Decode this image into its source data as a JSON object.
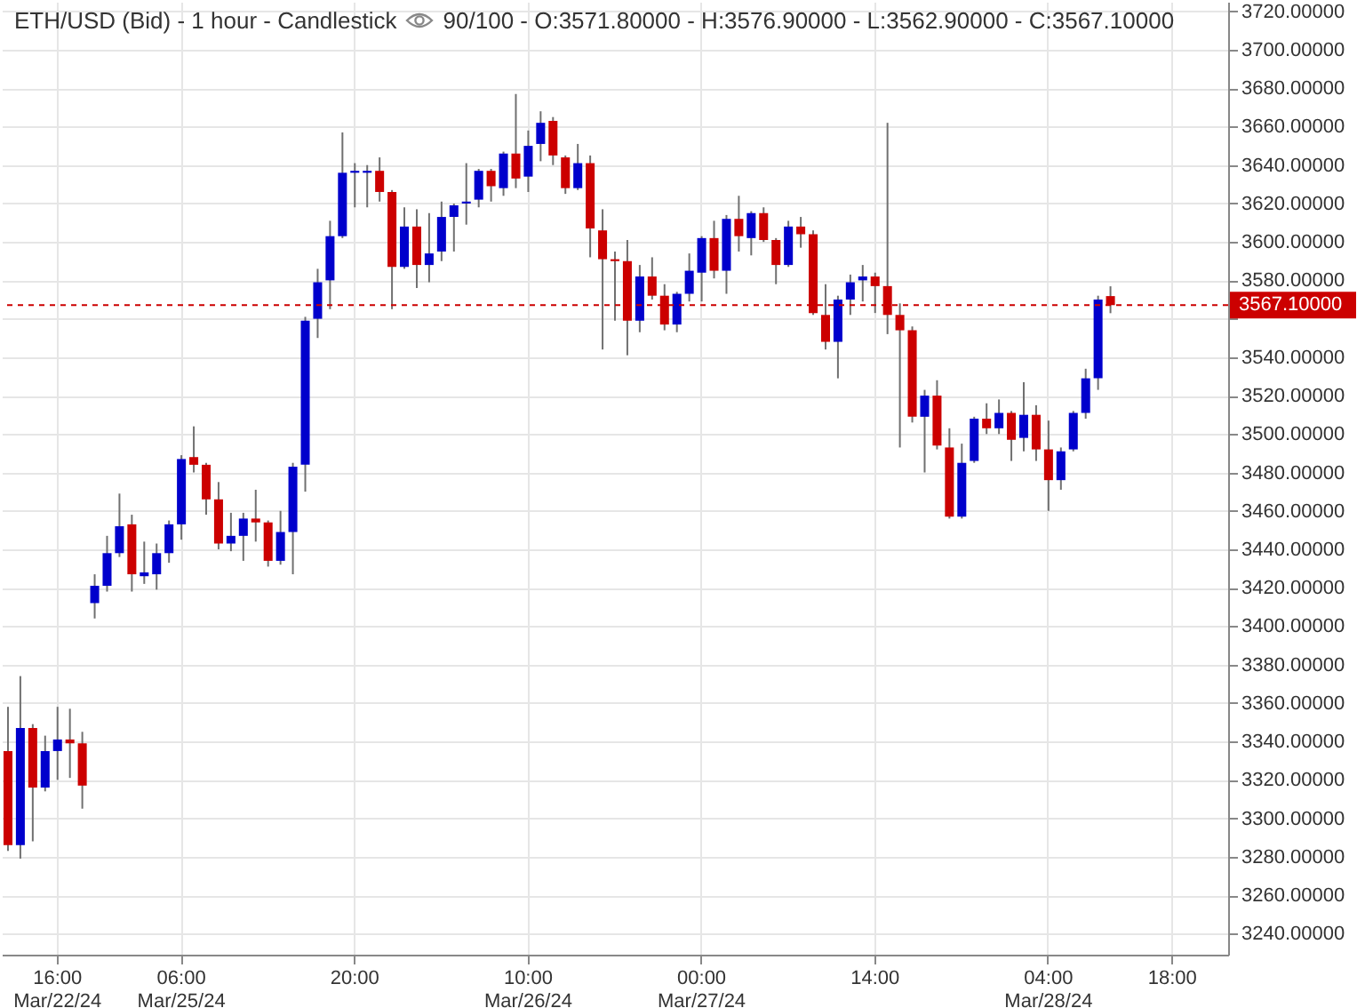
{
  "chart_data": {
    "type": "candlestick",
    "title": "ETH/USD (Bid) - 1 hour - Candlestick",
    "subtitle": "90/100 - O:3571.80000 - H:3576.90000 - L:3562.90000 - C:3567.10000",
    "categories": [
      null,
      null,
      null,
      null,
      "16:00\nMar/22/24",
      null,
      null,
      null,
      null,
      null,
      null,
      null,
      null,
      null,
      "06:00\nMar/25/24",
      null,
      null,
      null,
      null,
      null,
      null,
      null,
      null,
      null,
      null,
      null,
      null,
      null,
      "20:00",
      null,
      null,
      null,
      null,
      null,
      null,
      null,
      null,
      null,
      null,
      null,
      null,
      null,
      "10:00\nMar/26/24",
      null,
      null,
      null,
      null,
      null,
      null,
      null,
      null,
      null,
      null,
      null,
      null,
      null,
      "00:00\nMar/27/24",
      null,
      null,
      null,
      null,
      null,
      null,
      null,
      null,
      null,
      null,
      null,
      null,
      null,
      "14:00",
      null,
      null,
      null,
      null,
      null,
      null,
      null,
      null,
      null,
      null,
      null,
      null,
      null,
      "04:00\nMar/28/24",
      null,
      null,
      null,
      null,
      null,
      null,
      null,
      null,
      null,
      "18:00",
      null,
      null,
      null,
      null
    ],
    "ohlc": [
      [
        3335,
        3358,
        3283,
        3286
      ],
      [
        3286,
        3374,
        3279,
        3347
      ],
      [
        3347,
        3349,
        3288,
        3316
      ],
      [
        3316,
        3343,
        3314,
        3335
      ],
      [
        3335,
        3358,
        3320,
        3341
      ],
      [
        3341,
        3357,
        3321,
        3339
      ],
      [
        3339,
        3345,
        3305,
        3317
      ],
      [
        3412,
        3427,
        3404,
        3421
      ],
      [
        3421,
        3447,
        3418,
        3438
      ],
      [
        3438,
        3469,
        3436,
        3452
      ],
      [
        3453,
        3458,
        3418,
        3427
      ],
      [
        3426,
        3444,
        3422,
        3428
      ],
      [
        3427,
        3443,
        3419,
        3438
      ],
      [
        3438,
        3455,
        3433,
        3453
      ],
      [
        3453,
        3489,
        3445,
        3487
      ],
      [
        3488,
        3504,
        3480,
        3484
      ],
      [
        3484,
        3485,
        3458,
        3466
      ],
      [
        3466,
        3475,
        3440,
        3443
      ],
      [
        3443,
        3459,
        3439,
        3447
      ],
      [
        3447,
        3459,
        3434,
        3456
      ],
      [
        3456,
        3471,
        3444,
        3454
      ],
      [
        3454,
        3455,
        3431,
        3434
      ],
      [
        3434,
        3460,
        3432,
        3449
      ],
      [
        3449,
        3485,
        3427,
        3483
      ],
      [
        3484,
        3561,
        3470,
        3559
      ],
      [
        3560,
        3586,
        3550,
        3579
      ],
      [
        3580,
        3611,
        3565,
        3603
      ],
      [
        3603,
        3657,
        3602,
        3636
      ],
      [
        3636,
        3641,
        3618,
        3637
      ],
      [
        3636,
        3640,
        3618,
        3637
      ],
      [
        3637,
        3644,
        3621,
        3626
      ],
      [
        3626,
        3627,
        3565,
        3587
      ],
      [
        3587,
        3618,
        3586,
        3608
      ],
      [
        3608,
        3617,
        3576,
        3588
      ],
      [
        3588,
        3615,
        3579,
        3594
      ],
      [
        3595,
        3621,
        3590,
        3613
      ],
      [
        3613,
        3620,
        3595,
        3619
      ],
      [
        3620,
        3641,
        3609,
        3621
      ],
      [
        3622,
        3638,
        3618,
        3637
      ],
      [
        3637,
        3638,
        3621,
        3629
      ],
      [
        3628,
        3647,
        3624,
        3646
      ],
      [
        3646,
        3677,
        3628,
        3633
      ],
      [
        3634,
        3658,
        3626,
        3650
      ],
      [
        3651,
        3668,
        3642,
        3662
      ],
      [
        3663,
        3665,
        3640,
        3645
      ],
      [
        3644,
        3645,
        3625,
        3628
      ],
      [
        3628,
        3651,
        3627,
        3641
      ],
      [
        3641,
        3645,
        3592,
        3607
      ],
      [
        3606,
        3617,
        3544,
        3591
      ],
      [
        3591,
        3595,
        3559,
        3590
      ],
      [
        3590,
        3601,
        3541,
        3559
      ],
      [
        3559,
        3588,
        3553,
        3582
      ],
      [
        3582,
        3592,
        3570,
        3572
      ],
      [
        3572,
        3578,
        3554,
        3557
      ],
      [
        3557,
        3574,
        3553,
        3573
      ],
      [
        3573,
        3594,
        3569,
        3585
      ],
      [
        3584,
        3603,
        3569,
        3602
      ],
      [
        3602,
        3611,
        3581,
        3585
      ],
      [
        3585,
        3614,
        3573,
        3612
      ],
      [
        3612,
        3624,
        3595,
        3603
      ],
      [
        3602,
        3616,
        3593,
        3615
      ],
      [
        3615,
        3618,
        3600,
        3601
      ],
      [
        3601,
        3602,
        3578,
        3588
      ],
      [
        3588,
        3611,
        3587,
        3608
      ],
      [
        3608,
        3613,
        3597,
        3604
      ],
      [
        3604,
        3606,
        3562,
        3563
      ],
      [
        3562,
        3578,
        3544,
        3548
      ],
      [
        3548,
        3572,
        3529,
        3570
      ],
      [
        3570,
        3583,
        3562,
        3579
      ],
      [
        3580,
        3588,
        3569,
        3582
      ],
      [
        3582,
        3584,
        3563,
        3577
      ],
      [
        3577,
        3662,
        3552,
        3562
      ],
      [
        3562,
        3568,
        3493,
        3554
      ],
      [
        3554,
        3556,
        3506,
        3509
      ],
      [
        3509,
        3523,
        3480,
        3520
      ],
      [
        3520,
        3528,
        3492,
        3494
      ],
      [
        3493,
        3503,
        3456,
        3457
      ],
      [
        3457,
        3495,
        3456,
        3485
      ],
      [
        3486,
        3509,
        3485,
        3508
      ],
      [
        3508,
        3516,
        3500,
        3503
      ],
      [
        3503,
        3518,
        3500,
        3511
      ],
      [
        3511,
        3512,
        3486,
        3497
      ],
      [
        3498,
        3527,
        3491,
        3510
      ],
      [
        3510,
        3515,
        3486,
        3492
      ],
      [
        3492,
        3507,
        3460,
        3476
      ],
      [
        3476,
        3493,
        3471,
        3491
      ],
      [
        3492,
        3512,
        3491,
        3511
      ],
      [
        3511,
        3534,
        3508,
        3529
      ],
      [
        3529,
        3572,
        3523,
        3570
      ],
      [
        3571.8,
        3576.9,
        3562.9,
        3567.1
      ],
      null,
      null,
      null,
      null,
      null,
      null,
      null,
      null,
      null
    ],
    "colors": [
      "#cc0000",
      "#0000cc",
      "#cc0000",
      "#0000cc",
      "#0000cc",
      "#cc0000",
      "#cc0000",
      "#0000cc",
      "#0000cc",
      "#0000cc",
      "#cc0000",
      "#0000cc",
      "#0000cc",
      "#0000cc",
      "#0000cc",
      "#cc0000",
      "#cc0000",
      "#cc0000",
      "#0000cc",
      "#0000cc",
      "#cc0000",
      "#cc0000",
      "#0000cc",
      "#0000cc",
      "#0000cc",
      "#0000cc",
      "#0000cc",
      "#0000cc",
      "#0000cc",
      "#0000cc",
      "#cc0000",
      "#cc0000",
      "#0000cc",
      "#cc0000",
      "#0000cc",
      "#0000cc",
      "#0000cc",
      "#0000cc",
      "#0000cc",
      "#cc0000",
      "#0000cc",
      "#cc0000",
      "#0000cc",
      "#0000cc",
      "#cc0000",
      "#cc0000",
      "#0000cc",
      "#cc0000",
      "#cc0000",
      "#cc0000",
      "#cc0000",
      "#0000cc",
      "#cc0000",
      "#cc0000",
      "#0000cc",
      "#0000cc",
      "#0000cc",
      "#cc0000",
      "#0000cc",
      "#cc0000",
      "#0000cc",
      "#cc0000",
      "#cc0000",
      "#0000cc",
      "#cc0000",
      "#cc0000",
      "#cc0000",
      "#0000cc",
      "#0000cc",
      "#0000cc",
      "#cc0000",
      "#cc0000",
      "#cc0000",
      "#cc0000",
      "#0000cc",
      "#cc0000",
      "#cc0000",
      "#0000cc",
      "#0000cc",
      "#cc0000",
      "#0000cc",
      "#cc0000",
      "#0000cc",
      "#cc0000",
      "#cc0000",
      "#0000cc",
      "#0000cc",
      "#0000cc",
      "#0000cc",
      "#cc0000",
      null,
      null,
      null,
      null,
      null,
      null,
      null,
      null,
      null
    ],
    "ylim": [
      3229,
      3725
    ],
    "yticks": [
      {
        "value": 3240,
        "label": "3240.00000"
      },
      {
        "value": 3260,
        "label": "3260.00000"
      },
      {
        "value": 3280,
        "label": "3280.00000"
      },
      {
        "value": 3300,
        "label": "3300.00000"
      },
      {
        "value": 3320,
        "label": "3320.00000"
      },
      {
        "value": 3340,
        "label": "3340.00000"
      },
      {
        "value": 3360,
        "label": "3360.00000"
      },
      {
        "value": 3380,
        "label": "3380.00000"
      },
      {
        "value": 3400,
        "label": "3400.00000"
      },
      {
        "value": 3420,
        "label": "3420.00000"
      },
      {
        "value": 3440,
        "label": "3440.00000"
      },
      {
        "value": 3460,
        "label": "3460.00000"
      },
      {
        "value": 3480,
        "label": "3480.00000"
      },
      {
        "value": 3500,
        "label": "3500.00000"
      },
      {
        "value": 3520,
        "label": "3520.00000"
      },
      {
        "value": 3540,
        "label": "3540.00000"
      },
      {
        "value": 3560,
        "label": null
      },
      {
        "value": 3580,
        "label": "3580.00000"
      },
      {
        "value": 3600,
        "label": "3600.00000"
      },
      {
        "value": 3620,
        "label": "3620.00000"
      },
      {
        "value": 3640,
        "label": "3640.00000"
      },
      {
        "value": 3660,
        "label": "3660.00000"
      },
      {
        "value": 3680,
        "label": "3680.00000"
      },
      {
        "value": 3700,
        "label": "3700.00000"
      },
      {
        "value": 3720,
        "label": "3720.00000"
      }
    ],
    "ref_lines": [
      {
        "axis": "y",
        "value": 3567.1,
        "label": "3567.10000",
        "color": "#cc0000",
        "line_style": "dashed"
      }
    ],
    "grid": true
  }
}
